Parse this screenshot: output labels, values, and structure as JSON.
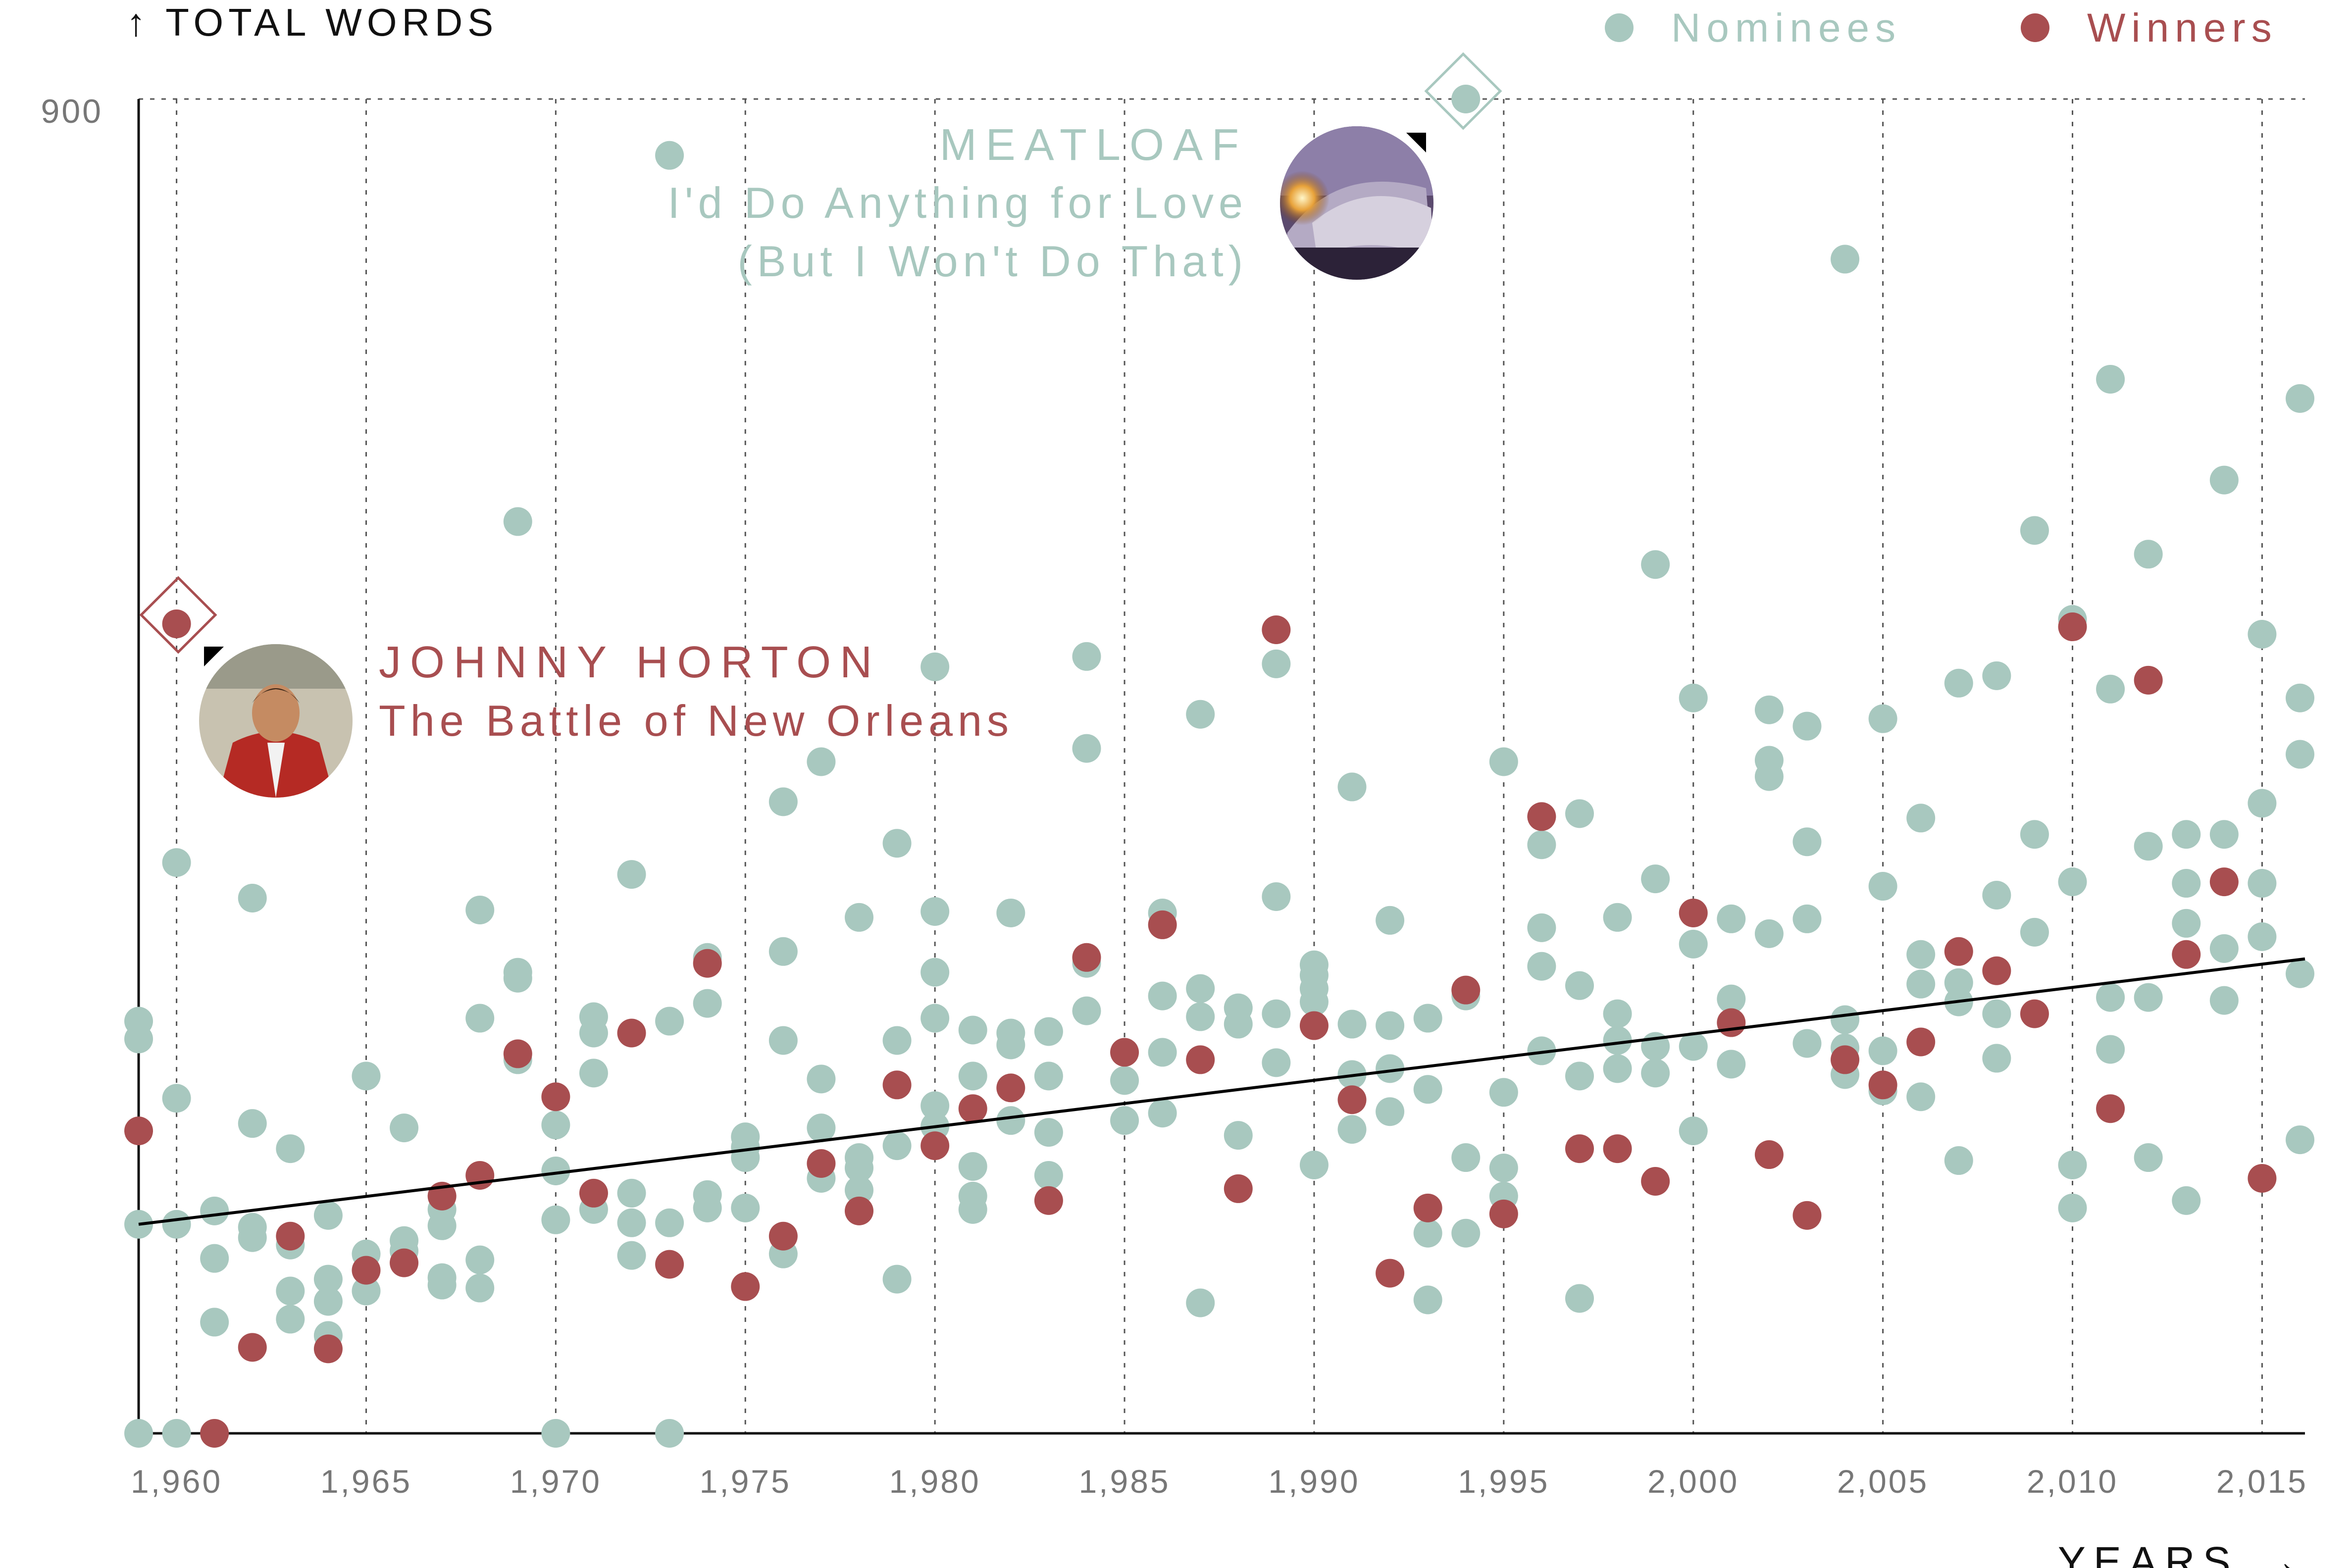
{
  "colors": {
    "nominee": "#a8c8bf",
    "winner": "#a84e50",
    "axis": "#111111",
    "grid": "#555555",
    "tick_text": "#777777",
    "trend": "#000000"
  },
  "labels": {
    "y_axis_title": "↑ TOTAL WORDS",
    "x_axis_title": "YEARS →",
    "y_top_tick": "900"
  },
  "legend": {
    "nominees": "Nominees",
    "winners": "Winners"
  },
  "annotations": {
    "meatloaf": {
      "artist": "MEATLOAF",
      "title_line1": "I'd Do Anything for Love",
      "title_line2": "(But I Won't Do That)",
      "image_icon": "album-cover-meatloaf"
    },
    "horton": {
      "artist": "JOHNNY HORTON",
      "title": "The Battle of New Orleans",
      "image_icon": "album-cover-johnny-horton"
    }
  },
  "chart_data": {
    "type": "scatter",
    "title": "",
    "xlabel": "YEARS",
    "ylabel": "TOTAL WORDS",
    "xlim": [
      1959,
      2016
    ],
    "ylim": [
      0,
      900
    ],
    "x_ticks": [
      1960,
      1965,
      1970,
      1975,
      1980,
      1985,
      1990,
      1995,
      2000,
      2005,
      2010,
      2015
    ],
    "x_tick_labels": [
      "1,960",
      "1,965",
      "1,970",
      "1,975",
      "1,980",
      "1,985",
      "1,990",
      "1,995",
      "2,000",
      "2,005",
      "2,010",
      "2,015"
    ],
    "y_ticks": [
      900
    ],
    "grid": "vertical dotted lines at each year tick",
    "legend_position": "top-right",
    "trend_line": {
      "from": [
        1959,
        141
      ],
      "to": [
        2016,
        320
      ]
    },
    "series": [
      {
        "name": "Nominees",
        "points": [
          [
            1959,
            278
          ],
          [
            1959,
            266
          ],
          [
            1959,
            141
          ],
          [
            1959,
            0
          ],
          [
            1960,
            385
          ],
          [
            1960,
            226
          ],
          [
            1960,
            141
          ],
          [
            1960,
            0
          ],
          [
            1961,
            150
          ],
          [
            1961,
            118
          ],
          [
            1961,
            75
          ],
          [
            1962,
            361
          ],
          [
            1962,
            209
          ],
          [
            1962,
            139
          ],
          [
            1962,
            132
          ],
          [
            1963,
            192
          ],
          [
            1963,
            127
          ],
          [
            1963,
            96
          ],
          [
            1963,
            77
          ],
          [
            1964,
            147
          ],
          [
            1964,
            104
          ],
          [
            1964,
            89
          ],
          [
            1964,
            66
          ],
          [
            1965,
            241
          ],
          [
            1965,
            121
          ],
          [
            1965,
            96
          ],
          [
            1966,
            206
          ],
          [
            1966,
            130
          ],
          [
            1966,
            123
          ],
          [
            1967,
            151
          ],
          [
            1967,
            140
          ],
          [
            1967,
            105
          ],
          [
            1967,
            100
          ],
          [
            1968,
            353
          ],
          [
            1968,
            280
          ],
          [
            1968,
            117
          ],
          [
            1968,
            98
          ],
          [
            1969,
            615
          ],
          [
            1969,
            311
          ],
          [
            1969,
            307
          ],
          [
            1969,
            252
          ],
          [
            1970,
            208
          ],
          [
            1970,
            177
          ],
          [
            1970,
            144
          ],
          [
            1970,
            0
          ],
          [
            1971,
            281
          ],
          [
            1971,
            270
          ],
          [
            1971,
            243
          ],
          [
            1971,
            151
          ],
          [
            1972,
            377
          ],
          [
            1972,
            162
          ],
          [
            1972,
            142
          ],
          [
            1972,
            120
          ],
          [
            1973,
            862
          ],
          [
            1973,
            278
          ],
          [
            1973,
            142
          ],
          [
            1973,
            0
          ],
          [
            1974,
            321
          ],
          [
            1974,
            290
          ],
          [
            1974,
            161
          ],
          [
            1974,
            152
          ],
          [
            1975,
            200
          ],
          [
            1975,
            193
          ],
          [
            1975,
            186
          ],
          [
            1975,
            152
          ],
          [
            1976,
            426
          ],
          [
            1976,
            325
          ],
          [
            1976,
            265
          ],
          [
            1976,
            121
          ],
          [
            1977,
            453
          ],
          [
            1977,
            239
          ],
          [
            1977,
            206
          ],
          [
            1977,
            172
          ],
          [
            1978,
            348
          ],
          [
            1978,
            186
          ],
          [
            1978,
            179
          ],
          [
            1978,
            164
          ],
          [
            1979,
            398
          ],
          [
            1979,
            265
          ],
          [
            1979,
            194
          ],
          [
            1979,
            104
          ],
          [
            1980,
            517
          ],
          [
            1980,
            352
          ],
          [
            1980,
            311
          ],
          [
            1980,
            280
          ],
          [
            1980,
            221
          ],
          [
            1980,
            207
          ],
          [
            1981,
            272
          ],
          [
            1981,
            241
          ],
          [
            1981,
            180
          ],
          [
            1981,
            160
          ],
          [
            1981,
            151
          ],
          [
            1982,
            351
          ],
          [
            1982,
            270
          ],
          [
            1982,
            262
          ],
          [
            1982,
            211
          ],
          [
            1983,
            271
          ],
          [
            1983,
            241
          ],
          [
            1983,
            203
          ],
          [
            1983,
            174
          ],
          [
            1984,
            524
          ],
          [
            1984,
            462
          ],
          [
            1984,
            317
          ],
          [
            1984,
            285
          ],
          [
            1985,
            238
          ],
          [
            1985,
            211
          ],
          [
            1986,
            351
          ],
          [
            1986,
            295
          ],
          [
            1986,
            257
          ],
          [
            1986,
            216
          ],
          [
            1987,
            485
          ],
          [
            1987,
            300
          ],
          [
            1987,
            281
          ],
          [
            1987,
            88
          ],
          [
            1988,
            287
          ],
          [
            1988,
            276
          ],
          [
            1988,
            201
          ],
          [
            1989,
            519
          ],
          [
            1989,
            362
          ],
          [
            1989,
            283
          ],
          [
            1989,
            250
          ],
          [
            1990,
            316
          ],
          [
            1990,
            309
          ],
          [
            1990,
            300
          ],
          [
            1990,
            291
          ],
          [
            1990,
            181
          ],
          [
            1991,
            436
          ],
          [
            1991,
            276
          ],
          [
            1991,
            242
          ],
          [
            1991,
            205
          ],
          [
            1992,
            346
          ],
          [
            1992,
            275
          ],
          [
            1992,
            246
          ],
          [
            1992,
            217
          ],
          [
            1993,
            280
          ],
          [
            1993,
            232
          ],
          [
            1993,
            135
          ],
          [
            1993,
            90
          ],
          [
            1994,
            900
          ],
          [
            1994,
            295
          ],
          [
            1994,
            186
          ],
          [
            1994,
            135
          ],
          [
            1995,
            453
          ],
          [
            1995,
            230
          ],
          [
            1995,
            179
          ],
          [
            1995,
            160
          ],
          [
            1996,
            397
          ],
          [
            1996,
            341
          ],
          [
            1996,
            315
          ],
          [
            1996,
            258
          ],
          [
            1997,
            418
          ],
          [
            1997,
            302
          ],
          [
            1997,
            241
          ],
          [
            1997,
            91
          ],
          [
            1998,
            348
          ],
          [
            1998,
            283
          ],
          [
            1998,
            265
          ],
          [
            1998,
            246
          ],
          [
            1999,
            586
          ],
          [
            1999,
            374
          ],
          [
            1999,
            261
          ],
          [
            1999,
            243
          ],
          [
            2000,
            496
          ],
          [
            2000,
            330
          ],
          [
            2000,
            261
          ],
          [
            2000,
            204
          ],
          [
            2001,
            347
          ],
          [
            2001,
            293
          ],
          [
            2001,
            249
          ],
          [
            2002,
            488
          ],
          [
            2002,
            454
          ],
          [
            2002,
            443
          ],
          [
            2002,
            337
          ],
          [
            2003,
            477
          ],
          [
            2003,
            399
          ],
          [
            2003,
            347
          ],
          [
            2003,
            263
          ],
          [
            2004,
            792
          ],
          [
            2004,
            279
          ],
          [
            2004,
            260
          ],
          [
            2004,
            242
          ],
          [
            2005,
            482
          ],
          [
            2005,
            369
          ],
          [
            2005,
            258
          ],
          [
            2005,
            231
          ],
          [
            2006,
            415
          ],
          [
            2006,
            323
          ],
          [
            2006,
            303
          ],
          [
            2006,
            227
          ],
          [
            2007,
            506
          ],
          [
            2007,
            304
          ],
          [
            2007,
            291
          ],
          [
            2007,
            184
          ],
          [
            2008,
            511
          ],
          [
            2008,
            363
          ],
          [
            2008,
            283
          ],
          [
            2008,
            253
          ],
          [
            2009,
            609
          ],
          [
            2009,
            404
          ],
          [
            2009,
            338
          ],
          [
            2010,
            549
          ],
          [
            2010,
            372
          ],
          [
            2010,
            181
          ],
          [
            2010,
            152
          ],
          [
            2011,
            711
          ],
          [
            2011,
            502
          ],
          [
            2011,
            294
          ],
          [
            2011,
            259
          ],
          [
            2012,
            593
          ],
          [
            2012,
            396
          ],
          [
            2012,
            294
          ],
          [
            2012,
            186
          ],
          [
            2013,
            404
          ],
          [
            2013,
            371
          ],
          [
            2013,
            344
          ],
          [
            2013,
            157
          ],
          [
            2014,
            643
          ],
          [
            2014,
            404
          ],
          [
            2014,
            327
          ],
          [
            2014,
            292
          ],
          [
            2015,
            539
          ],
          [
            2015,
            425
          ],
          [
            2015,
            371
          ],
          [
            2015,
            335
          ],
          [
            2016,
            698
          ],
          [
            2016,
            496
          ],
          [
            2016,
            458
          ],
          [
            2016,
            310
          ],
          [
            2016,
            198
          ]
        ]
      },
      {
        "name": "Winners",
        "points": [
          [
            1959,
            204
          ],
          [
            1960,
            546
          ],
          [
            1961,
            0
          ],
          [
            1962,
            58
          ],
          [
            1963,
            133
          ],
          [
            1964,
            57
          ],
          [
            1965,
            110
          ],
          [
            1966,
            115
          ],
          [
            1967,
            160
          ],
          [
            1968,
            174
          ],
          [
            1969,
            256
          ],
          [
            1970,
            227
          ],
          [
            1971,
            162
          ],
          [
            1972,
            270
          ],
          [
            1973,
            114
          ],
          [
            1974,
            317
          ],
          [
            1975,
            99
          ],
          [
            1976,
            133
          ],
          [
            1977,
            182
          ],
          [
            1978,
            150
          ],
          [
            1979,
            235
          ],
          [
            1980,
            194
          ],
          [
            1981,
            219
          ],
          [
            1982,
            233
          ],
          [
            1983,
            157
          ],
          [
            1984,
            321
          ],
          [
            1985,
            257
          ],
          [
            1986,
            343
          ],
          [
            1987,
            252
          ],
          [
            1988,
            165
          ],
          [
            1989,
            542
          ],
          [
            1990,
            275
          ],
          [
            1991,
            225
          ],
          [
            1992,
            108
          ],
          [
            1993,
            152
          ],
          [
            1994,
            299
          ],
          [
            1995,
            148
          ],
          [
            1996,
            416
          ],
          [
            1997,
            192
          ],
          [
            1998,
            192
          ],
          [
            1999,
            170
          ],
          [
            2000,
            351
          ],
          [
            2001,
            277
          ],
          [
            2002,
            188
          ],
          [
            2003,
            147
          ],
          [
            2004,
            252
          ],
          [
            2005,
            235
          ],
          [
            2006,
            264
          ],
          [
            2007,
            325
          ],
          [
            2008,
            312
          ],
          [
            2009,
            283
          ],
          [
            2010,
            544
          ],
          [
            2011,
            219
          ],
          [
            2012,
            508
          ],
          [
            2013,
            323
          ],
          [
            2014,
            372
          ],
          [
            2015,
            172
          ]
        ]
      }
    ]
  }
}
